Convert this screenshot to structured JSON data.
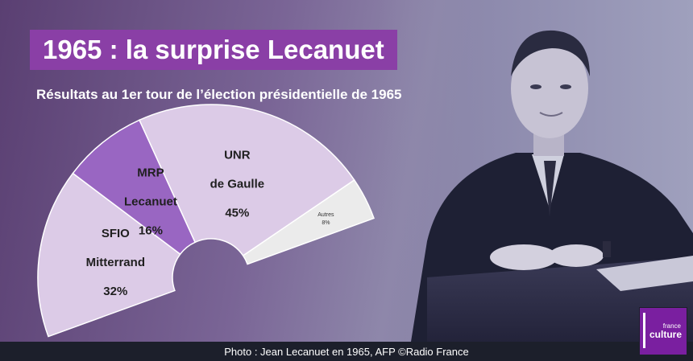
{
  "title": "1965 : la surprise Lecanuet",
  "subtitle": "Résultats au 1er tour de l’élection présidentielle de 1965",
  "footer": "Photo : Jean Lecanuet en 1965, AFP ©Radio France",
  "logo": {
    "top": "france",
    "main": "culture"
  },
  "colors": {
    "title_bg": "#8a3fa6",
    "light_purple": "#dccbe7",
    "mid_purple": "#9966c2",
    "gray": "#ebebeb"
  },
  "chart_data": {
    "type": "pie",
    "subtype": "semicircle-donut",
    "title": "1965 : la surprise Lecanuet",
    "subtitle": "Résultats au 1er tour de l’élection présidentielle de 1965",
    "slices": [
      {
        "party": "SFIO",
        "candidate": "Mitterrand",
        "label": "32%",
        "value": 32,
        "color": "#dccbe7"
      },
      {
        "party": "MRP",
        "candidate": "Lecanuet",
        "label": "16%",
        "value": 16,
        "color": "#9966c2"
      },
      {
        "party": "UNR",
        "candidate": "de Gaulle",
        "label": "45%",
        "value": 45,
        "color": "#dccbe7"
      },
      {
        "party": "",
        "candidate": "Autres",
        "label": "8%",
        "value": 8,
        "color": "#ebebeb"
      }
    ]
  }
}
